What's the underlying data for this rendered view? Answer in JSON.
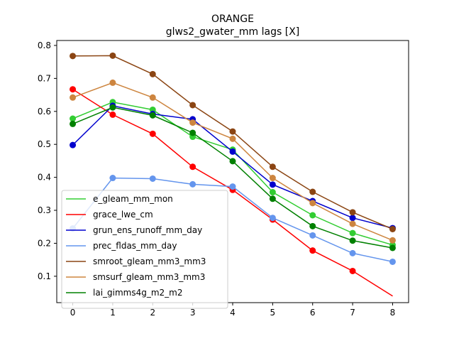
{
  "chart_data": {
    "type": "line",
    "title": "ORANGE",
    "subtitle": "glws2_gwater_mm lags [X]",
    "xlabel": "",
    "ylabel": "",
    "x": [
      0,
      1,
      2,
      3,
      4,
      5,
      6,
      7,
      8
    ],
    "xlim": [
      -0.4,
      8.4
    ],
    "ylim": [
      0.02,
      0.815
    ],
    "xticks": [
      "0",
      "1",
      "2",
      "3",
      "4",
      "5",
      "6",
      "7",
      "8"
    ],
    "yticks": [
      "0.1",
      "0.2",
      "0.3",
      "0.4",
      "0.5",
      "0.6",
      "0.7",
      "0.8"
    ],
    "grid": false,
    "legend_position": "lower-left",
    "series": [
      {
        "name": "e_gleam_mm_mon",
        "color": "#32cd32",
        "values": [
          0.578,
          0.628,
          0.605,
          0.523,
          0.484,
          0.355,
          0.285,
          0.231,
          0.195
        ]
      },
      {
        "name": "grace_lwe_cm",
        "color": "#ff0000",
        "values": [
          0.667,
          0.59,
          0.532,
          0.432,
          0.362,
          0.272,
          0.178,
          0.116,
          0.04
        ],
        "markers": [
          0,
          1,
          2,
          3,
          4,
          5,
          6,
          7
        ]
      },
      {
        "name": "grun_ens_runoff_mm_day",
        "color": "#0000cd",
        "values": [
          0.498,
          0.617,
          0.592,
          0.576,
          0.478,
          0.378,
          0.328,
          0.277,
          0.246
        ]
      },
      {
        "name": "prec_fldas_mm_day",
        "color": "#6495ed",
        "values": [
          0.245,
          0.398,
          0.396,
          0.379,
          0.372,
          0.277,
          0.224,
          0.17,
          0.144
        ]
      },
      {
        "name": "smroot_gleam_mm3_mm3",
        "color": "#8b4513",
        "values": [
          0.768,
          0.769,
          0.713,
          0.619,
          0.539,
          0.432,
          0.356,
          0.294,
          0.243
        ]
      },
      {
        "name": "smsurf_gleam_mm3_mm3",
        "color": "#cd853f",
        "values": [
          0.642,
          0.687,
          0.642,
          0.566,
          0.517,
          0.398,
          0.322,
          0.259,
          0.209
        ]
      },
      {
        "name": "lai_gimms4g_m2_m2",
        "color": "#008000",
        "values": [
          0.562,
          0.612,
          0.588,
          0.535,
          0.449,
          0.335,
          0.252,
          0.208,
          0.186
        ]
      }
    ]
  }
}
